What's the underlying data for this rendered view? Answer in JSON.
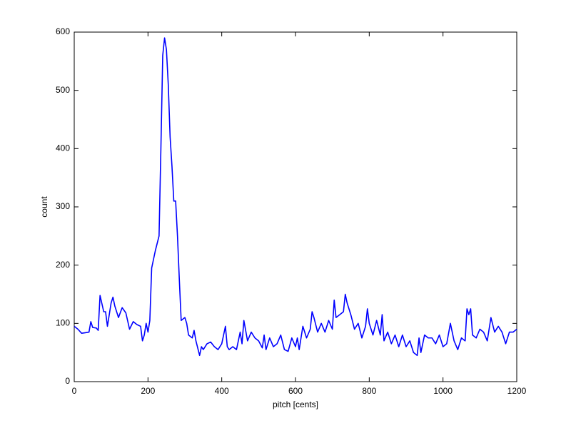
{
  "chart_data": {
    "type": "line",
    "xlabel": "pitch [cents]",
    "ylabel": "count",
    "x": [
      0,
      10,
      20,
      30,
      40,
      45,
      50,
      60,
      65,
      70,
      80,
      85,
      90,
      100,
      105,
      110,
      120,
      130,
      140,
      150,
      160,
      170,
      180,
      185,
      190,
      195,
      200,
      205,
      210,
      220,
      230,
      235,
      240,
      245,
      250,
      255,
      260,
      265,
      270,
      275,
      280,
      285,
      290,
      300,
      305,
      310,
      320,
      325,
      330,
      340,
      345,
      350,
      360,
      370,
      380,
      390,
      400,
      410,
      415,
      420,
      430,
      440,
      450,
      455,
      460,
      470,
      480,
      490,
      500,
      510,
      515,
      520,
      530,
      540,
      550,
      560,
      570,
      580,
      590,
      600,
      605,
      610,
      620,
      630,
      640,
      645,
      650,
      660,
      670,
      680,
      690,
      700,
      705,
      710,
      720,
      730,
      735,
      740,
      750,
      760,
      770,
      780,
      790,
      795,
      800,
      810,
      820,
      830,
      835,
      840,
      850,
      860,
      870,
      880,
      890,
      900,
      910,
      920,
      930,
      935,
      940,
      950,
      960,
      970,
      980,
      990,
      1000,
      1010,
      1020,
      1030,
      1040,
      1050,
      1060,
      1065,
      1070,
      1075,
      1080,
      1090,
      1100,
      1110,
      1120,
      1130,
      1140,
      1150,
      1160,
      1170,
      1180,
      1190,
      1200
    ],
    "values": [
      95,
      90,
      83,
      84,
      85,
      103,
      93,
      92,
      88,
      148,
      120,
      120,
      95,
      135,
      145,
      130,
      110,
      127,
      118,
      90,
      103,
      98,
      95,
      70,
      80,
      100,
      85,
      105,
      195,
      225,
      250,
      400,
      560,
      590,
      570,
      510,
      420,
      370,
      310,
      310,
      250,
      175,
      105,
      110,
      100,
      80,
      75,
      88,
      70,
      45,
      60,
      55,
      65,
      68,
      60,
      55,
      65,
      95,
      60,
      55,
      60,
      55,
      85,
      65,
      105,
      70,
      85,
      75,
      70,
      58,
      80,
      55,
      75,
      60,
      65,
      80,
      55,
      52,
      75,
      60,
      75,
      55,
      95,
      75,
      90,
      120,
      110,
      85,
      100,
      85,
      105,
      90,
      140,
      110,
      115,
      120,
      150,
      135,
      115,
      90,
      100,
      75,
      95,
      125,
      100,
      80,
      105,
      80,
      115,
      70,
      85,
      65,
      80,
      60,
      80,
      60,
      70,
      50,
      45,
      75,
      50,
      80,
      75,
      75,
      65,
      80,
      60,
      65,
      100,
      70,
      55,
      75,
      70,
      125,
      115,
      125,
      80,
      75,
      90,
      85,
      70,
      110,
      85,
      95,
      85,
      65,
      85,
      85,
      90
    ],
    "color": "#0000ff",
    "xlim": [
      0,
      1200
    ],
    "xticks": [
      0,
      200,
      400,
      600,
      800,
      1000,
      1200
    ],
    "ylim": [
      0,
      600
    ],
    "yticks": [
      0,
      100,
      200,
      300,
      400,
      500,
      600
    ],
    "grid": false
  }
}
